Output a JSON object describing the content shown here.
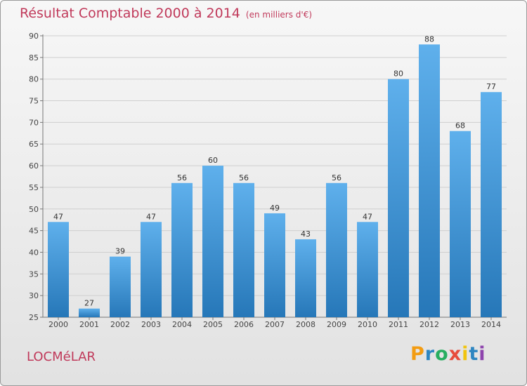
{
  "title": "Résultat Comptable 2000 à 2014",
  "subtitle": "(en milliers d'€)",
  "town": "LOCMéLAR",
  "logo": {
    "letters": [
      "P",
      "r",
      "o",
      "x",
      "i",
      "t",
      "i"
    ],
    "colors": [
      "#f39c12",
      "#2e86c1",
      "#27ae60",
      "#e74c3c",
      "#f1c40f",
      "#2e86c1",
      "#8e44ad"
    ]
  },
  "colors": {
    "bar": "#3e95d6",
    "title": "#c0395a"
  },
  "chart_data": {
    "type": "bar",
    "title": "Résultat Comptable 2000 à 2014",
    "subtitle": "(en milliers d'€)",
    "categories": [
      "2000",
      "2001",
      "2002",
      "2003",
      "2004",
      "2005",
      "2006",
      "2007",
      "2008",
      "2009",
      "2010",
      "2011",
      "2012",
      "2013",
      "2014"
    ],
    "values": [
      47,
      27,
      39,
      47,
      56,
      60,
      56,
      49,
      43,
      56,
      47,
      80,
      88,
      68,
      77
    ],
    "ylim": [
      25,
      90
    ],
    "yticks": [
      25,
      30,
      35,
      40,
      45,
      50,
      55,
      60,
      65,
      70,
      75,
      80,
      85,
      90
    ],
    "grid": true,
    "legend": "none"
  }
}
